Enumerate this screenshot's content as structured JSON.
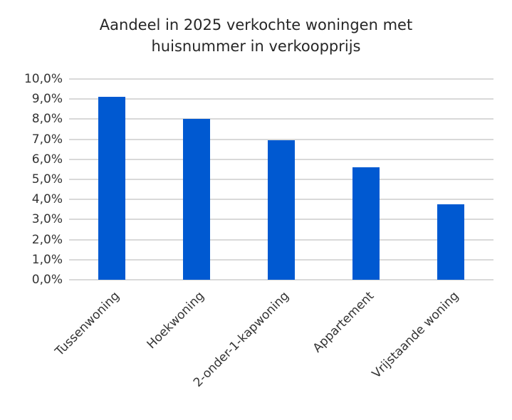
{
  "title_line1": "Aandeel in 2025 verkochte woningen met",
  "title_line2": "huisnummer in verkoopprijs",
  "colors": {
    "bar": "#0059d1",
    "grid": "#d9d9d9"
  },
  "y_ticks": [
    "0,0%",
    "1,0%",
    "2,0%",
    "3,0%",
    "4,0%",
    "5,0%",
    "6,0%",
    "7,0%",
    "8,0%",
    "9,0%",
    "10,0%"
  ],
  "chart_data": {
    "type": "bar",
    "title": "Aandeel in 2025 verkochte woningen met huisnummer in verkoopprijs",
    "categories": [
      "Tussenwoning",
      "Hoekwoning",
      "2-onder-1-kapwoning",
      "Appartement",
      "Vrijstaande woning"
    ],
    "values": [
      9.1,
      8.0,
      6.95,
      5.6,
      3.75
    ],
    "unit": "%",
    "xlabel": "",
    "ylabel": "",
    "ylim": [
      0,
      10
    ],
    "ytick_step": 1,
    "grid": true,
    "legend": false
  }
}
